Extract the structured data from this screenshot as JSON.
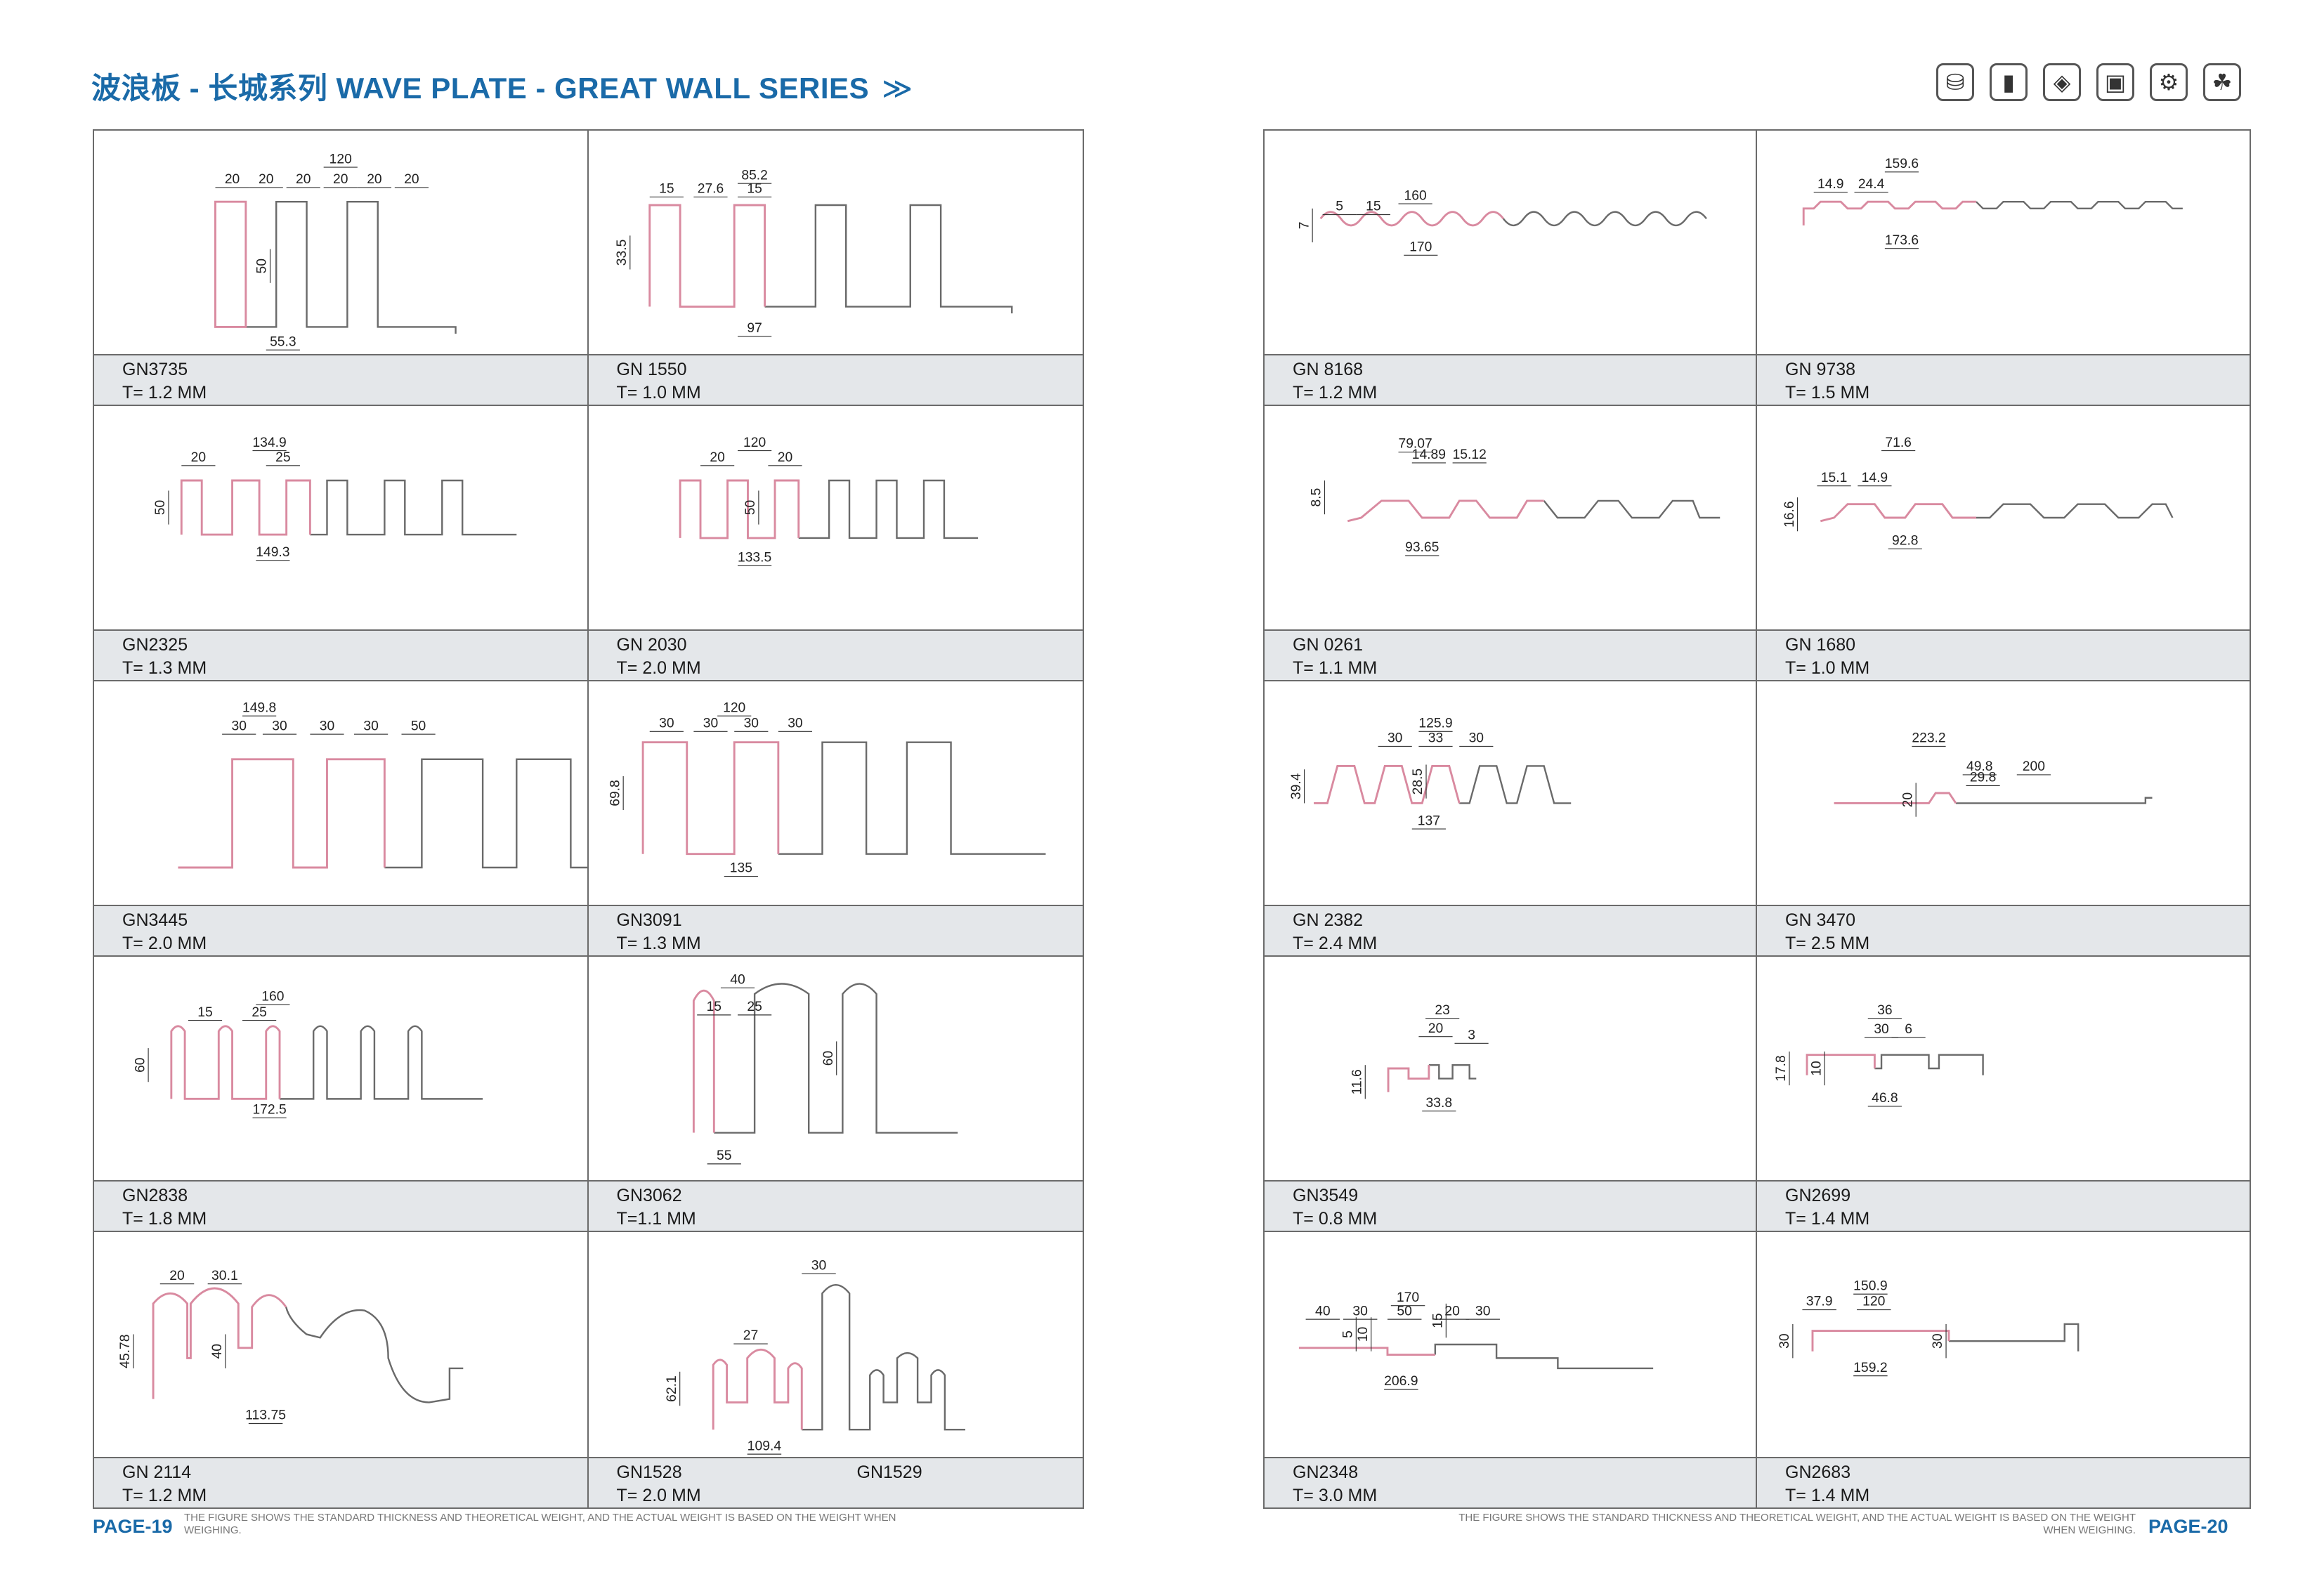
{
  "header": {
    "title": "波浪板 - 长城系列 WAVE PLATE - GREAT WALL SERIES",
    "chevron": "≫"
  },
  "icons": [
    "pallet-icon",
    "bottle-icon",
    "board-icon",
    "machine-icon",
    "gears-icon",
    "plant-icon"
  ],
  "colors": {
    "accent": "#1a6aa8",
    "profile_highlight": "#d98aa0",
    "profile": "#6a6a6a",
    "caption_bg": "#e4e7ea"
  },
  "left_items": [
    {
      "code": "GN3735",
      "thickness": "T= 1.2 MM",
      "dims": [
        "120",
        "20",
        "20",
        "20",
        "20",
        "20",
        "20",
        "50",
        "55.3"
      ]
    },
    {
      "code": "GN 1550",
      "thickness": "T= 1.0 MM",
      "dims": [
        "85.2",
        "15",
        "27.6",
        "15",
        "33.5",
        "97"
      ]
    },
    {
      "code": "GN2325",
      "thickness": "T=  1.3  MM",
      "dims": [
        "134.9",
        "20",
        "25",
        "50",
        "149.3"
      ]
    },
    {
      "code": "GN 2030",
      "thickness": "T= 2.0 MM",
      "dims": [
        "120",
        "20",
        "20",
        "50",
        "133.5"
      ]
    },
    {
      "code": "GN3445",
      "thickness": "T= 2.0 MM",
      "dims": [
        "149.8",
        "30",
        "30",
        "30",
        "30",
        "50"
      ]
    },
    {
      "code": "GN3091",
      "thickness": "T= 1.3 MM",
      "dims": [
        "120",
        "30",
        "30",
        "30",
        "30",
        "69.8",
        "135"
      ]
    },
    {
      "code": "GN2838",
      "thickness": "T= 1.8 MM",
      "dims": [
        "160",
        "15",
        "25",
        "60",
        "172.5"
      ]
    },
    {
      "code": "GN3062",
      "thickness": "T=1.1 MM",
      "dims": [
        "40",
        "15",
        "25",
        "60",
        "55"
      ]
    },
    {
      "code": "GN 2114",
      "thickness": "T= 1.2 MM",
      "dims": [
        "20",
        "30.1",
        "45.78",
        "40",
        "113.75"
      ]
    },
    {
      "code": "GN1528",
      "code2": "GN1529",
      "thickness": "T= 2.0 MM",
      "dims": [
        "30",
        "27",
        "62.1",
        "109.4"
      ]
    }
  ],
  "right_items": [
    {
      "code": "GN 8168",
      "thickness": "T= 1.2 MM",
      "dims": [
        "160",
        "5",
        "15",
        "7",
        "170"
      ]
    },
    {
      "code": "GN 9738",
      "thickness": "T= 1.5 MM",
      "dims": [
        "159.6",
        "14.9",
        "24.4",
        "173.6"
      ]
    },
    {
      "code": "GN 0261",
      "thickness": "T= 1.1 MM",
      "dims": [
        "79.07",
        "14.89",
        "15.12",
        "8.5",
        "93.65"
      ]
    },
    {
      "code": "GN 1680",
      "thickness": "T= 1.0 MM",
      "dims": [
        "71.6",
        "15.1",
        "14.9",
        "16.6",
        "92.8"
      ]
    },
    {
      "code": "GN 2382",
      "thickness": "T= 2.4 MM",
      "dims": [
        "125.9",
        "30",
        "33",
        "30",
        "39.4",
        "28.5",
        "137"
      ]
    },
    {
      "code": "GN 3470",
      "thickness": "T= 2.5 MM",
      "dims": [
        "223.2",
        "49.8",
        "29.8",
        "200",
        "20"
      ]
    },
    {
      "code": "GN3549",
      "thickness": "T=  0.8 MM",
      "dims": [
        "23",
        "20",
        "3",
        "11.6",
        "33.8"
      ]
    },
    {
      "code": "GN2699",
      "thickness": "T= 1.4 MM",
      "dims": [
        "36",
        "30",
        "6",
        "17.8",
        "10",
        "46.8"
      ]
    },
    {
      "code": "GN2348",
      "thickness": "T= 3.0 MM",
      "dims": [
        "170",
        "40",
        "30",
        "50",
        "20",
        "30",
        "5",
        "10",
        "15",
        "206.9"
      ]
    },
    {
      "code": "GN2683",
      "thickness": "T= 1.4 MM",
      "dims": [
        "150.9",
        "37.9",
        "120",
        "30",
        "30",
        "159.2"
      ]
    }
  ],
  "footer": {
    "page_left": "PAGE-19",
    "page_right": "PAGE-20",
    "note_left": "THE FIGURE SHOWS THE STANDARD THICKNESS AND THEORETICAL WEIGHT, AND THE ACTUAL WEIGHT IS BASED ON THE WEIGHT WHEN WEIGHING.",
    "note_right": "THE FIGURE SHOWS THE STANDARD THICKNESS AND THEORETICAL WEIGHT, AND THE ACTUAL WEIGHT IS BASED ON THE WEIGHT WHEN WEIGHING."
  }
}
